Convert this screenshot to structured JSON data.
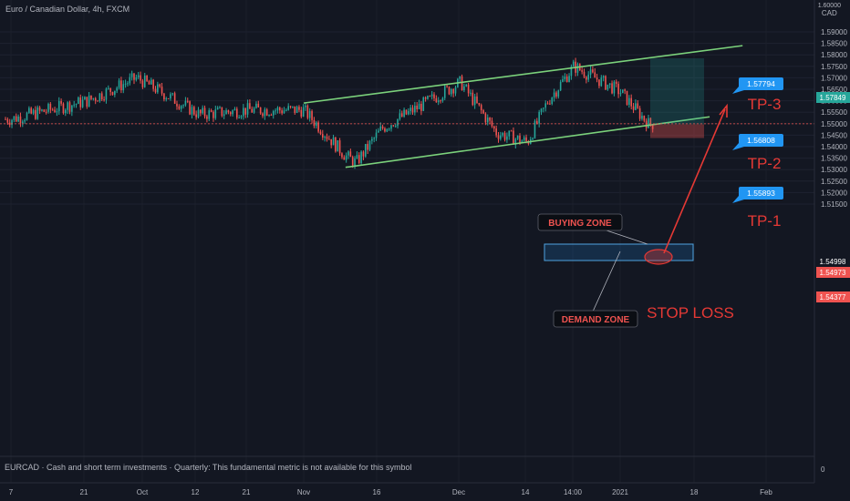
{
  "header": {
    "title": "Euro / Canadian Dollar, 4h, FXCM",
    "currency": "CAD",
    "currency_top": "1.60000"
  },
  "fundamental_note": "EURCAD · Cash and short term investments · Quarterly: This fundamental metric is not available for this symbol",
  "fundamental_value": "0",
  "colors": {
    "background": "#131722",
    "up": "#26a69a",
    "down": "#ef5350",
    "channel": "#7bd17b",
    "target": "#2196f3",
    "annotation": "#e53935"
  },
  "chart_data": {
    "type": "candlestick",
    "symbol": "EURCAD",
    "timeframe": "4h",
    "source": "FXCM",
    "y_ticks": [
      "1.59000",
      "1.58500",
      "1.58000",
      "1.57500",
      "1.57000",
      "1.56500",
      "1.56000",
      "1.55500",
      "1.55000",
      "1.54500",
      "1.54000",
      "1.53500",
      "1.53000",
      "1.52500",
      "1.52000",
      "1.51500"
    ],
    "ylim": [
      1.5125,
      1.6
    ],
    "x_ticks": [
      "7",
      "21",
      "Oct",
      "12",
      "21",
      "Nov",
      "16",
      "Dec",
      "14",
      "14:00",
      "2021",
      "18",
      "Feb"
    ],
    "price_path": [
      {
        "t": "Sep 7",
        "price": 1.552
      },
      {
        "t": "Sep 21",
        "price": 1.56
      },
      {
        "t": "Sep 30",
        "price": 1.57
      },
      {
        "t": "Oct 12",
        "price": 1.554
      },
      {
        "t": "Oct 21",
        "price": 1.556
      },
      {
        "t": "Nov 1",
        "price": 1.556
      },
      {
        "t": "Nov 9",
        "price": 1.536
      },
      {
        "t": "Nov 11",
        "price": 1.533
      },
      {
        "t": "Nov 16",
        "price": 1.548
      },
      {
        "t": "Dec 1",
        "price": 1.568
      },
      {
        "t": "Dec 8",
        "price": 1.546
      },
      {
        "t": "Dec 14",
        "price": 1.542
      },
      {
        "t": "Dec 18",
        "price": 1.56
      },
      {
        "t": "Dec 23",
        "price": 1.575
      },
      {
        "t": "Jan 1",
        "price": 1.564
      },
      {
        "t": "Jan 7",
        "price": 1.55
      }
    ],
    "channel": {
      "upper": [
        {
          "t": "Nov 1",
          "price": 1.559
        },
        {
          "t": "Jan 27",
          "price": 1.584
        }
      ],
      "lower": [
        {
          "t": "Nov 9",
          "price": 1.531
        },
        {
          "t": "Jan 20",
          "price": 1.553
        }
      ]
    },
    "price_labels": {
      "current": "1.54998",
      "entry": "1.54973",
      "stop": "1.54377",
      "target": "1.57849"
    },
    "targets": [
      {
        "label": "TP-1",
        "price": "1.55893"
      },
      {
        "label": "TP-2",
        "price": "1.56808"
      },
      {
        "label": "TP-3",
        "price": "1.57794"
      }
    ],
    "zones": {
      "buying": "BUYING ZONE",
      "demand": "DEMAND ZONE",
      "stop_loss": "STOP LOSS"
    }
  }
}
